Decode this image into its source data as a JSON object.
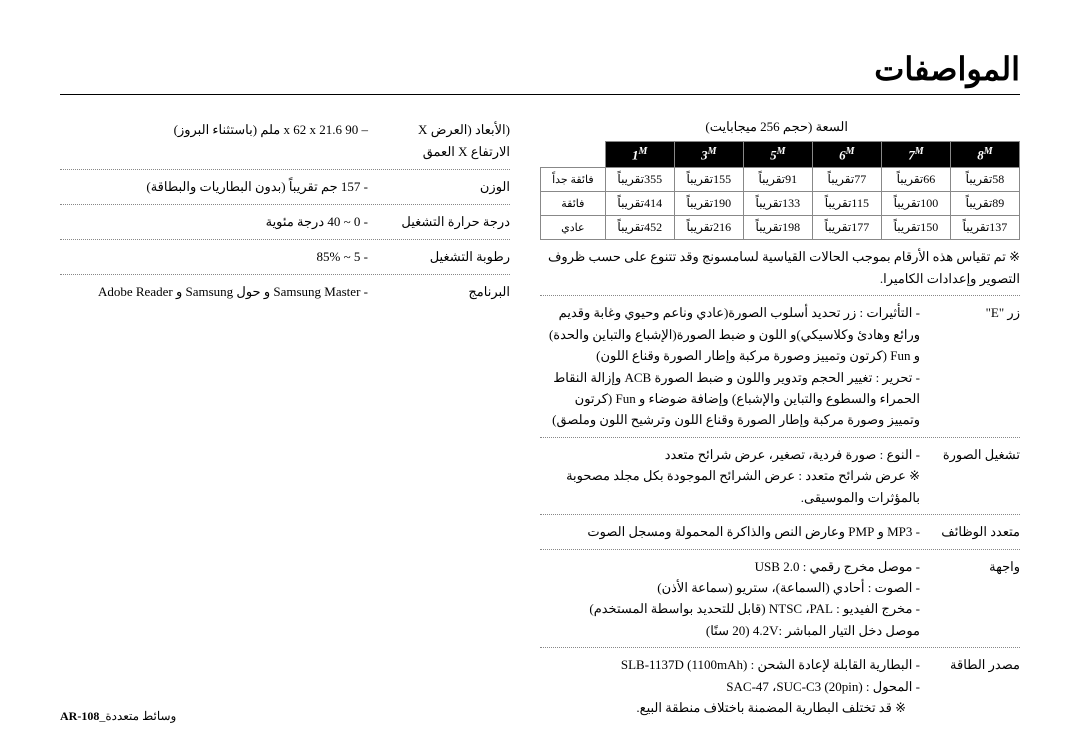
{
  "page_title": "المواصفات",
  "capacity": {
    "caption": "السعة (حجم 256 ميجابايت)",
    "headers_suffix": "M",
    "headers": [
      "1",
      "3",
      "5",
      "6",
      "7",
      "8"
    ],
    "rows": [
      {
        "label": "فائقة جداً",
        "cells": [
          "355تقريباً",
          "155تقريباً",
          "91تقريباً",
          "77تقريباً",
          "66تقريباً",
          "58تقريباً"
        ]
      },
      {
        "label": "فائقة",
        "cells": [
          "414تقريباً",
          "190تقريباً",
          "133تقريباً",
          "115تقريباً",
          "100تقريباً",
          "89تقريباً"
        ]
      },
      {
        "label": "عادي",
        "cells": [
          "452تقريباً",
          "216تقريباً",
          "198تقريباً",
          "177تقريباً",
          "150تقريباً",
          "137تقريباً"
        ]
      }
    ]
  },
  "note1": "※ تم تقياس هذه الأرقام بموجب الحالات القياسية لسامسونج وقد تتنوع على حسب ظروف التصوير وإعدادات الكاميرا.",
  "e_btn": {
    "label": "زر \"E\"",
    "line1": "- التأثيرات : زر تحديد أسلوب الصورة(عادي وناعم وحيوي وغابة وقديم ورائع وهادئ وكلاسيكي)و اللون و ضبط الصورة(الإشباع والتباين والحدة) و Fun (كرتون وتمييز وصورة مركبة وإطار الصورة وقناع اللون)",
    "line2": "- تحرير : تغيير الحجم وتدوير واللون و ضبط الصورة ACB وإزالة النقاط الحمراء والسطوع والتباين والإشباع) وإضافة ضوضاء و Fun (كرتون وتمييز وصورة مركبة وإطار الصورة وقناع اللون وترشيح اللون وملصق)"
  },
  "play": {
    "label": "تشغيل الصورة",
    "line1": "- النوع : صورة فردية، تصغير، عرض شرائح متعدد",
    "line2": "※ عرض شرائح متعدد : عرض الشرائح الموجودة بكل مجلد مصحوبة بالمؤثرات والموسيقى."
  },
  "multi": {
    "label": "متعدد الوظائف",
    "val": "- MP3 و PMP وعارض النص والذاكرة المحمولة ومسجل الصوت"
  },
  "iface": {
    "label": "واجهة",
    "line1": "- موصل مخرج رقمي : USB 2.0",
    "line2": "- الصوت : أحادي (السماعة)، ستريو (سماعة الأذن)",
    "line3": "- مخرج الفيديو : NTSC ،PAL (قابل للتحديد بواسطة المستخدم)",
    "line4": "موصل دخل التيار المباشر :4.2V (20 سنًا)"
  },
  "power": {
    "label": "مصدر الطاقة",
    "line1": "- البطارية القابلة لإعادة الشحن : SLB-1137D (1100mAh)",
    "line2": "- المحول : SAC-47 ،SUC-C3 (20pin)",
    "note": "※ قد تختلف البطارية المضمنة باختلاف منطقة البيع."
  },
  "left": {
    "dims": {
      "label": "(الأبعاد (العرض X الارتفاع X العمق",
      "val": "– 90 x 62 x 21.6 ملم (باستثناء البروز)"
    },
    "weight": {
      "label": "الوزن",
      "val": "- 157 جم تقريباً (بدون البطاريات والبطاقة)"
    },
    "optemp": {
      "label": "درجة حرارة التشغيل",
      "val": "- 0 ~ 40 درجة مئوية"
    },
    "humid": {
      "label": "رطوبة التشغيل",
      "val": "- 5 ~ 85%"
    },
    "soft": {
      "label": "البرنامج",
      "val": "- Samsung Master و حول Samsung و Adobe Reader"
    }
  },
  "footer": {
    "page": "AR-108",
    "text": "_وسائط متعددة"
  }
}
